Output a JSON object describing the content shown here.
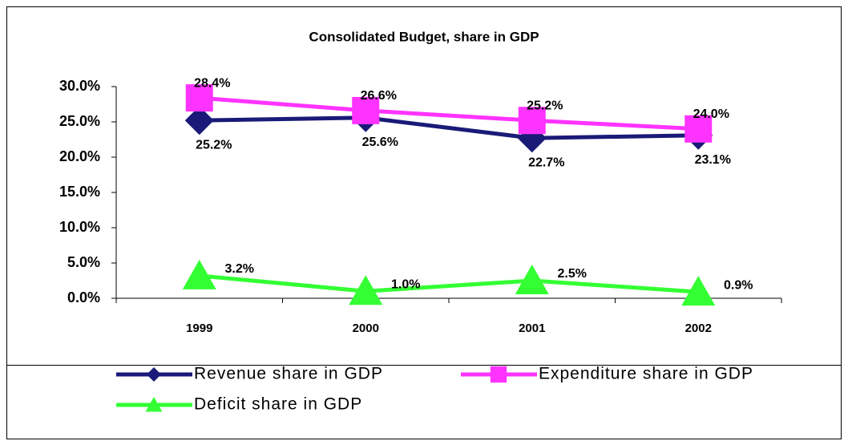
{
  "chart_data": {
    "type": "line",
    "title": "Consolidated Budget, share in GDP",
    "categories": [
      "1999",
      "2000",
      "2001",
      "2002"
    ],
    "series": [
      {
        "name": "Revenue share in GDP",
        "color": "#1a1a78",
        "marker": "diamond",
        "values": [
          25.2,
          25.6,
          22.7,
          23.1
        ],
        "value_labels": [
          "25.2%",
          "25.6%",
          "22.7%",
          "23.1%"
        ]
      },
      {
        "name": "Expenditure share in GDP",
        "color": "#ff33ff",
        "marker": "square",
        "values": [
          28.4,
          26.6,
          25.2,
          24.0
        ],
        "value_labels": [
          "28.4%",
          "26.6%",
          "25.2%",
          "24.0%"
        ]
      },
      {
        "name": "Deficit share in GDP",
        "color": "#33ff33",
        "marker": "triangle",
        "values": [
          3.2,
          1.0,
          2.5,
          0.9
        ],
        "value_labels": [
          "3.2%",
          "1.0%",
          "2.5%",
          "0.9%"
        ]
      }
    ],
    "ylim": [
      0,
      30
    ],
    "yticks": [
      {
        "value": 0,
        "label": "0.0%"
      },
      {
        "value": 5,
        "label": "5.0%"
      },
      {
        "value": 10,
        "label": "10.0%"
      },
      {
        "value": 15,
        "label": "15.0%"
      },
      {
        "value": 20,
        "label": "20.0%"
      },
      {
        "value": 25,
        "label": "25.0%"
      },
      {
        "value": 30,
        "label": "30.0%"
      }
    ],
    "legend": "bottom"
  }
}
